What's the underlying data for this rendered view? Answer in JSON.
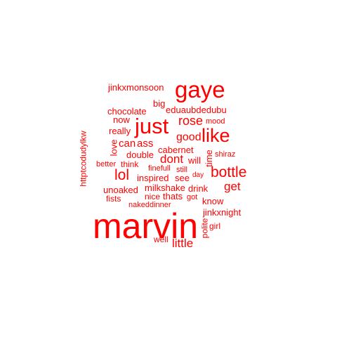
{
  "word_cloud": {
    "color": "#ff0000",
    "words": [
      {
        "text": "marvin"
      },
      {
        "text": "gaye"
      },
      {
        "text": "just"
      },
      {
        "text": "like"
      },
      {
        "text": "bottle"
      },
      {
        "text": "lol"
      },
      {
        "text": "rose"
      },
      {
        "text": "dont"
      },
      {
        "text": "get"
      },
      {
        "text": "good"
      },
      {
        "text": "little"
      },
      {
        "text": "jinkxmonsoon"
      },
      {
        "text": "eduaubdedubu"
      },
      {
        "text": "chocolate"
      },
      {
        "text": "big"
      },
      {
        "text": "now"
      },
      {
        "text": "mood"
      },
      {
        "text": "really"
      },
      {
        "text": "httptcodudylkw"
      },
      {
        "text": "can"
      },
      {
        "text": "ass"
      },
      {
        "text": "love"
      },
      {
        "text": "cabernet"
      },
      {
        "text": "time"
      },
      {
        "text": "double"
      },
      {
        "text": "will"
      },
      {
        "text": "shiraz"
      },
      {
        "text": "better"
      },
      {
        "text": "think"
      },
      {
        "text": "finefull"
      },
      {
        "text": "still"
      },
      {
        "text": "inspired"
      },
      {
        "text": "see"
      },
      {
        "text": "day"
      },
      {
        "text": "unoaked"
      },
      {
        "text": "milkshake"
      },
      {
        "text": "drink"
      },
      {
        "text": "nice"
      },
      {
        "text": "thats"
      },
      {
        "text": "fists"
      },
      {
        "text": "got"
      },
      {
        "text": "know"
      },
      {
        "text": "nakeddinner"
      },
      {
        "text": "jinkxnight"
      },
      {
        "text": "girl"
      },
      {
        "text": "polite"
      },
      {
        "text": "well"
      }
    ]
  }
}
